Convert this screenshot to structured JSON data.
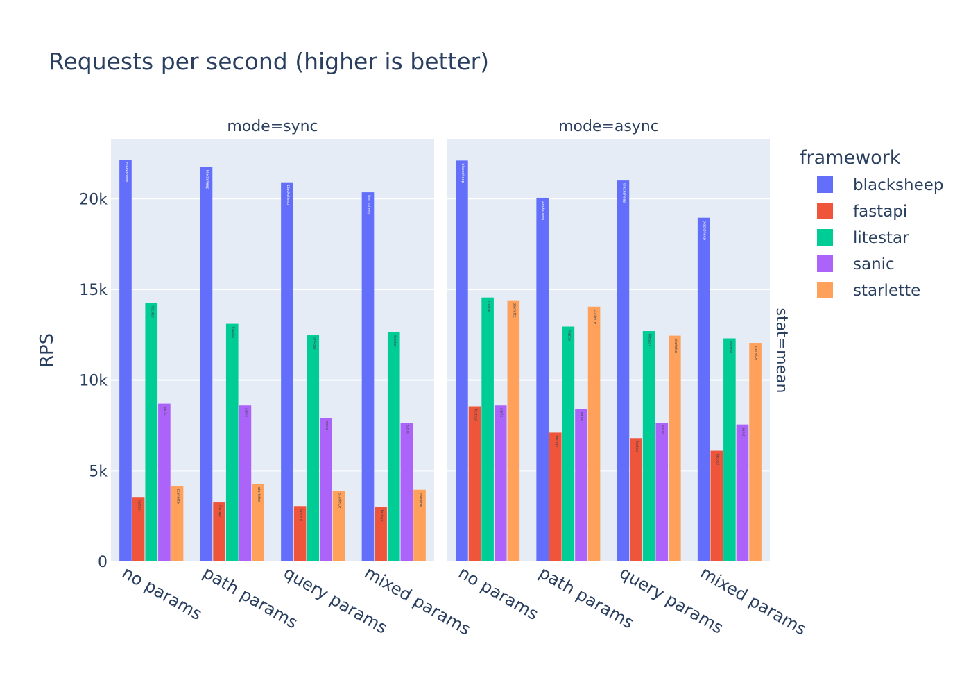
{
  "chart_data": {
    "type": "bar",
    "title": "Requests per second (higher is better)",
    "ylabel": "RPS",
    "xlabel": "",
    "ylim": [
      0,
      23300
    ],
    "yticks": [
      {
        "value": 0,
        "label": "0"
      },
      {
        "value": 5000,
        "label": "5k"
      },
      {
        "value": 10000,
        "label": "10k"
      },
      {
        "value": 15000,
        "label": "15k"
      },
      {
        "value": 20000,
        "label": "20k"
      }
    ],
    "grid": true,
    "row_facet_label": "stat=mean",
    "legend": {
      "title": "framework",
      "placement": "right"
    },
    "categories": [
      "no params",
      "path params",
      "query params",
      "mixed params"
    ],
    "colors": {
      "blacksheep": "#636efa",
      "fastapi": "#ef553b",
      "litestar": "#00cc96",
      "sanic": "#ab63fa",
      "starlette": "#ffa15a"
    },
    "facets": [
      {
        "label": "mode=sync",
        "series": [
          {
            "name": "blacksheep",
            "values": [
              22150,
              21750,
              20900,
              20350
            ]
          },
          {
            "name": "fastapi",
            "values": [
              3550,
              3250,
              3050,
              3000
            ]
          },
          {
            "name": "litestar",
            "values": [
              14250,
              13100,
              12500,
              12650
            ]
          },
          {
            "name": "sanic",
            "values": [
              8700,
              8600,
              7900,
              7650
            ]
          },
          {
            "name": "starlette",
            "values": [
              4150,
              4250,
              3900,
              3950
            ]
          }
        ]
      },
      {
        "label": "mode=async",
        "series": [
          {
            "name": "blacksheep",
            "values": [
              22100,
              20050,
              21000,
              18950
            ]
          },
          {
            "name": "fastapi",
            "values": [
              8550,
              7100,
              6800,
              6100
            ]
          },
          {
            "name": "litestar",
            "values": [
              14550,
              12950,
              12700,
              12300
            ]
          },
          {
            "name": "sanic",
            "values": [
              8600,
              8400,
              7650,
              7550
            ]
          },
          {
            "name": "starlette",
            "values": [
              14400,
              14050,
              12450,
              12050
            ]
          }
        ]
      }
    ]
  }
}
